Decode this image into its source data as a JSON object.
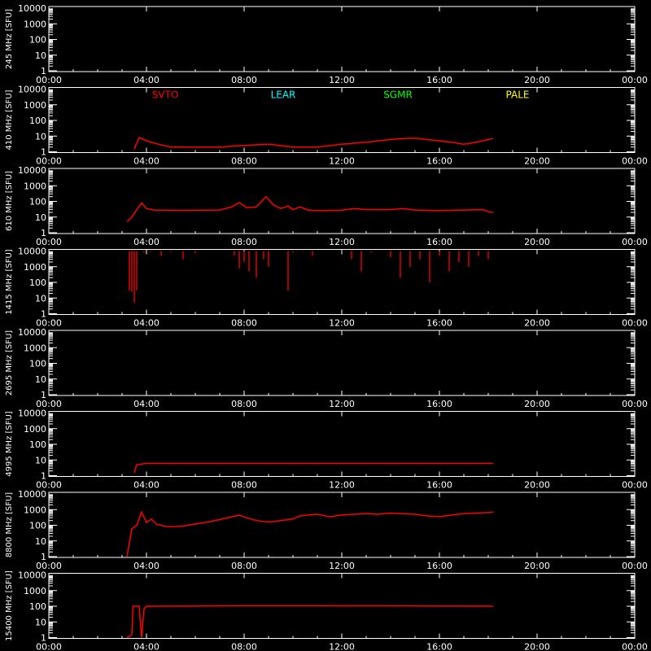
{
  "chart_data": [
    {
      "type": "line",
      "ylabel": "245 MHz [SFU]",
      "xticks": [
        "00:00",
        "04:00",
        "08:00",
        "12:00",
        "16:00",
        "20:00",
        "00:00"
      ],
      "yticks": [
        "1",
        "10",
        "100",
        "1000",
        "10000"
      ],
      "ylim": [
        1,
        10000
      ],
      "yscale": "log",
      "series": []
    },
    {
      "type": "line",
      "ylabel": "410 MHz [SFU]",
      "xticks": [
        "00:00",
        "04:00",
        "08:00",
        "12:00",
        "16:00",
        "20:00",
        "00:00"
      ],
      "yticks": [
        "1",
        "10",
        "100",
        "1000",
        "10000"
      ],
      "ylim": [
        1,
        10000
      ],
      "yscale": "log",
      "station_labels": [
        {
          "text": "SVTO",
          "color": "#ff0000"
        },
        {
          "text": "LEAR",
          "color": "#00ffff"
        },
        {
          "text": "SGMR",
          "color": "#00ff00"
        },
        {
          "text": "PALE",
          "color": "#ffff00"
        }
      ],
      "series": [
        {
          "color": "#ff0000",
          "points": [
            [
              3.5,
              1.5
            ],
            [
              3.7,
              8
            ],
            [
              4.0,
              5
            ],
            [
              4.5,
              3
            ],
            [
              5,
              2
            ],
            [
              6,
              2
            ],
            [
              7,
              2
            ],
            [
              8,
              2.5
            ],
            [
              9,
              3
            ],
            [
              10,
              2
            ],
            [
              11,
              2
            ],
            [
              12,
              3
            ],
            [
              12.5,
              3.5
            ],
            [
              13,
              4
            ],
            [
              13.5,
              5
            ],
            [
              14,
              6
            ],
            [
              14.5,
              7
            ],
            [
              15,
              7.5
            ],
            [
              15.5,
              6
            ],
            [
              16,
              5
            ],
            [
              16.5,
              4
            ],
            [
              17,
              3
            ],
            [
              17.5,
              4
            ],
            [
              18,
              6
            ],
            [
              18.2,
              7
            ]
          ]
        }
      ]
    },
    {
      "type": "line",
      "ylabel": "610 MHz [SFU]",
      "xticks": [
        "00:00",
        "04:00",
        "08:00",
        "12:00",
        "16:00",
        "20:00",
        "00:00"
      ],
      "yticks": [
        "1",
        "10",
        "100",
        "1000",
        "10000"
      ],
      "ylim": [
        1,
        10000
      ],
      "yscale": "log",
      "series": [
        {
          "color": "#ff0000",
          "points": [
            [
              3.2,
              5
            ],
            [
              3.4,
              10
            ],
            [
              3.6,
              30
            ],
            [
              3.8,
              80
            ],
            [
              4.0,
              35
            ],
            [
              4.3,
              28
            ],
            [
              5,
              27
            ],
            [
              6,
              27
            ],
            [
              7,
              28
            ],
            [
              7.5,
              45
            ],
            [
              7.8,
              85
            ],
            [
              8.1,
              40
            ],
            [
              8.5,
              45
            ],
            [
              8.9,
              200
            ],
            [
              9.2,
              60
            ],
            [
              9.5,
              35
            ],
            [
              9.8,
              50
            ],
            [
              10,
              30
            ],
            [
              10.3,
              45
            ],
            [
              10.6,
              28
            ],
            [
              11,
              26
            ],
            [
              12,
              27
            ],
            [
              12.5,
              35
            ],
            [
              13,
              30
            ],
            [
              14,
              30
            ],
            [
              14.5,
              35
            ],
            [
              15,
              28
            ],
            [
              16,
              26
            ],
            [
              17,
              28
            ],
            [
              17.8,
              30
            ],
            [
              18.0,
              22
            ],
            [
              18.2,
              20
            ]
          ]
        }
      ]
    },
    {
      "type": "scatter",
      "ylabel": "1415 MHz [SFU]",
      "xticks": [
        "00:00",
        "04:00",
        "08:00",
        "12:00",
        "16:00",
        "20:00",
        "00:00"
      ],
      "yticks": [
        "1",
        "10",
        "100",
        "1000",
        "10000"
      ],
      "ylim": [
        1,
        10000
      ],
      "yscale": "log",
      "series": [
        {
          "color": "#ff0000",
          "points": [
            [
              3.3,
              30
            ],
            [
              3.4,
              25
            ],
            [
              3.5,
              5
            ],
            [
              3.6,
              30
            ],
            [
              3.9,
              8000
            ],
            [
              4.2,
              9000
            ],
            [
              4.6,
              5000
            ],
            [
              5.0,
              8500
            ],
            [
              5.5,
              3000
            ],
            [
              6.0,
              7000
            ],
            [
              7.6,
              5000
            ],
            [
              7.8,
              800
            ],
            [
              8.0,
              2000
            ],
            [
              8.2,
              500
            ],
            [
              8.5,
              200
            ],
            [
              8.8,
              3000
            ],
            [
              9.0,
              1000
            ],
            [
              9.8,
              30
            ],
            [
              10.0,
              8000
            ],
            [
              10.4,
              9000
            ],
            [
              10.8,
              5000
            ],
            [
              12.0,
              9500
            ],
            [
              12.4,
              3000
            ],
            [
              12.8,
              500
            ],
            [
              13.2,
              8000
            ],
            [
              14.0,
              4000
            ],
            [
              14.4,
              200
            ],
            [
              14.8,
              1000
            ],
            [
              15.2,
              3000
            ],
            [
              15.6,
              100
            ],
            [
              16.0,
              5000
            ],
            [
              16.4,
              500
            ],
            [
              16.8,
              2000
            ],
            [
              17.2,
              1000
            ],
            [
              17.6,
              5000
            ],
            [
              18.0,
              3000
            ]
          ]
        }
      ]
    },
    {
      "type": "line",
      "ylabel": "2695 MHz [SFU]",
      "xticks": [
        "00:00",
        "04:00",
        "08:00",
        "12:00",
        "16:00",
        "20:00",
        "00:00"
      ],
      "yticks": [
        "1",
        "10",
        "100",
        "1000",
        "10000"
      ],
      "ylim": [
        1,
        10000
      ],
      "yscale": "log",
      "series": []
    },
    {
      "type": "line",
      "ylabel": "4995 MHz [SFU]",
      "xticks": [
        "00:00",
        "04:00",
        "08:00",
        "12:00",
        "16:00",
        "20:00",
        "00:00"
      ],
      "yticks": [
        "1",
        "10",
        "100",
        "1000",
        "10000"
      ],
      "ylim": [
        1,
        10000
      ],
      "yscale": "log",
      "series": [
        {
          "color": "#ff0000",
          "points": [
            [
              3.5,
              1.5
            ],
            [
              3.6,
              5
            ],
            [
              4,
              6
            ],
            [
              6,
              6
            ],
            [
              8,
              6
            ],
            [
              10,
              6
            ],
            [
              12,
              6
            ],
            [
              14,
              6
            ],
            [
              16,
              6
            ],
            [
              18,
              6
            ],
            [
              18.2,
              6
            ]
          ]
        }
      ]
    },
    {
      "type": "line",
      "ylabel": "8800 MHz [SFU]",
      "xticks": [
        "00:00",
        "04:00",
        "08:00",
        "12:00",
        "16:00",
        "20:00",
        "00:00"
      ],
      "yticks": [
        "1",
        "10",
        "100",
        "1000",
        "10000"
      ],
      "ylim": [
        1,
        10000
      ],
      "yscale": "log",
      "series": [
        {
          "color": "#ff0000",
          "points": [
            [
              3.2,
              1
            ],
            [
              3.4,
              60
            ],
            [
              3.6,
              100
            ],
            [
              3.8,
              700
            ],
            [
              4.0,
              150
            ],
            [
              4.2,
              250
            ],
            [
              4.4,
              120
            ],
            [
              4.7,
              90
            ],
            [
              5,
              80
            ],
            [
              5.5,
              90
            ],
            [
              6,
              120
            ],
            [
              6.5,
              160
            ],
            [
              7,
              230
            ],
            [
              7.5,
              350
            ],
            [
              7.8,
              450
            ],
            [
              8.1,
              300
            ],
            [
              8.5,
              200
            ],
            [
              9,
              160
            ],
            [
              9.5,
              200
            ],
            [
              10,
              250
            ],
            [
              10.3,
              400
            ],
            [
              10.6,
              450
            ],
            [
              11,
              500
            ],
            [
              11.5,
              350
            ],
            [
              12,
              450
            ],
            [
              12.5,
              500
            ],
            [
              13,
              550
            ],
            [
              13.5,
              500
            ],
            [
              14,
              600
            ],
            [
              14.5,
              550
            ],
            [
              15,
              500
            ],
            [
              15.5,
              400
            ],
            [
              16,
              350
            ],
            [
              16.5,
              450
            ],
            [
              17,
              550
            ],
            [
              17.5,
              600
            ],
            [
              18,
              650
            ],
            [
              18.2,
              700
            ]
          ]
        }
      ]
    },
    {
      "type": "line",
      "ylabel": "15400 MHz [SFU]",
      "xticks": [
        "00:00",
        "04:00",
        "08:00",
        "12:00",
        "16:00",
        "20:00",
        "00:00"
      ],
      "yticks": [
        "1",
        "10",
        "100",
        "1000",
        "10000"
      ],
      "ylim": [
        1,
        10000
      ],
      "yscale": "log",
      "series": [
        {
          "color": "#ff0000",
          "points": [
            [
              3.2,
              1
            ],
            [
              3.4,
              1.5
            ],
            [
              3.45,
              100
            ],
            [
              3.7,
              100
            ],
            [
              3.8,
              1
            ],
            [
              3.9,
              70
            ],
            [
              4.0,
              100
            ],
            [
              6,
              105
            ],
            [
              8,
              110
            ],
            [
              10,
              110
            ],
            [
              12,
              108
            ],
            [
              14,
              108
            ],
            [
              16,
              105
            ],
            [
              17,
              105
            ],
            [
              18,
              102
            ],
            [
              18.2,
              98
            ]
          ]
        }
      ]
    }
  ]
}
